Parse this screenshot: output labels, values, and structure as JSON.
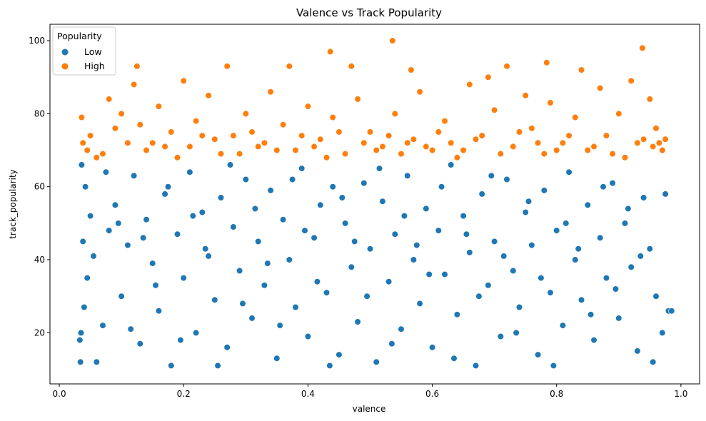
{
  "chart_data": {
    "type": "scatter",
    "title": "Valence vs Track Popularity",
    "xlabel": "valence",
    "ylabel": "track_popularity",
    "xlim": [
      -0.015,
      1.03
    ],
    "ylim": [
      6,
      104.5
    ],
    "xticks": [
      0.0,
      0.2,
      0.4,
      0.6,
      0.8,
      1.0
    ],
    "xtick_labels": [
      "0.0",
      "0.2",
      "0.4",
      "0.6",
      "0.8",
      "1.0"
    ],
    "yticks": [
      20,
      40,
      60,
      80,
      100
    ],
    "ytick_labels": [
      "20",
      "40",
      "60",
      "80",
      "100"
    ],
    "grid": false,
    "legend": {
      "title": "Popularity",
      "placement": "top-left",
      "entries": [
        "Low",
        "High"
      ]
    },
    "colors": {
      "Low": "#1f77b4",
      "High": "#ff7f0e"
    },
    "series": [
      {
        "name": "Low",
        "points": [
          [
            0.033,
            18
          ],
          [
            0.035,
            20
          ],
          [
            0.04,
            27
          ],
          [
            0.045,
            35
          ],
          [
            0.038,
            45
          ],
          [
            0.05,
            52
          ],
          [
            0.042,
            60
          ],
          [
            0.036,
            66
          ],
          [
            0.06,
            12
          ],
          [
            0.07,
            22
          ],
          [
            0.08,
            48
          ],
          [
            0.09,
            55
          ],
          [
            0.1,
            30
          ],
          [
            0.11,
            44
          ],
          [
            0.12,
            63
          ],
          [
            0.13,
            17
          ],
          [
            0.14,
            51
          ],
          [
            0.15,
            39
          ],
          [
            0.16,
            26
          ],
          [
            0.17,
            58
          ],
          [
            0.18,
            11
          ],
          [
            0.19,
            47
          ],
          [
            0.2,
            35
          ],
          [
            0.21,
            64
          ],
          [
            0.22,
            20
          ],
          [
            0.23,
            53
          ],
          [
            0.24,
            41
          ],
          [
            0.25,
            29
          ],
          [
            0.26,
            57
          ],
          [
            0.27,
            16
          ],
          [
            0.28,
            49
          ],
          [
            0.29,
            37
          ],
          [
            0.3,
            62
          ],
          [
            0.31,
            24
          ],
          [
            0.32,
            45
          ],
          [
            0.33,
            33
          ],
          [
            0.34,
            59
          ],
          [
            0.35,
            13
          ],
          [
            0.36,
            51
          ],
          [
            0.37,
            40
          ],
          [
            0.38,
            27
          ],
          [
            0.39,
            65
          ],
          [
            0.4,
            19
          ],
          [
            0.41,
            46
          ],
          [
            0.42,
            55
          ],
          [
            0.43,
            31
          ],
          [
            0.44,
            60
          ],
          [
            0.45,
            14
          ],
          [
            0.46,
            50
          ],
          [
            0.47,
            38
          ],
          [
            0.48,
            23
          ],
          [
            0.49,
            61
          ],
          [
            0.5,
            43
          ],
          [
            0.51,
            12
          ],
          [
            0.52,
            56
          ],
          [
            0.53,
            34
          ],
          [
            0.54,
            47
          ],
          [
            0.55,
            21
          ],
          [
            0.56,
            63
          ],
          [
            0.57,
            40
          ],
          [
            0.58,
            28
          ],
          [
            0.59,
            54
          ],
          [
            0.6,
            16
          ],
          [
            0.61,
            48
          ],
          [
            0.62,
            36
          ],
          [
            0.63,
            66
          ],
          [
            0.64,
            25
          ],
          [
            0.65,
            52
          ],
          [
            0.66,
            42
          ],
          [
            0.67,
            11
          ],
          [
            0.68,
            58
          ],
          [
            0.69,
            33
          ],
          [
            0.7,
            45
          ],
          [
            0.71,
            19
          ],
          [
            0.72,
            62
          ],
          [
            0.73,
            37
          ],
          [
            0.74,
            27
          ],
          [
            0.75,
            53
          ],
          [
            0.76,
            44
          ],
          [
            0.77,
            14
          ],
          [
            0.78,
            59
          ],
          [
            0.79,
            31
          ],
          [
            0.8,
            48
          ],
          [
            0.81,
            22
          ],
          [
            0.82,
            64
          ],
          [
            0.83,
            40
          ],
          [
            0.84,
            29
          ],
          [
            0.85,
            55
          ],
          [
            0.86,
            18
          ],
          [
            0.87,
            46
          ],
          [
            0.88,
            35
          ],
          [
            0.89,
            61
          ],
          [
            0.9,
            24
          ],
          [
            0.91,
            50
          ],
          [
            0.92,
            38
          ],
          [
            0.93,
            15
          ],
          [
            0.94,
            57
          ],
          [
            0.95,
            43
          ],
          [
            0.96,
            30
          ],
          [
            0.97,
            20
          ],
          [
            0.98,
            26
          ],
          [
            0.034,
            12
          ],
          [
            0.055,
            41
          ],
          [
            0.075,
            64
          ],
          [
            0.095,
            50
          ],
          [
            0.115,
            21
          ],
          [
            0.135,
            46
          ],
          [
            0.155,
            33
          ],
          [
            0.175,
            60
          ],
          [
            0.195,
            18
          ],
          [
            0.215,
            52
          ],
          [
            0.235,
            43
          ],
          [
            0.255,
            11
          ],
          [
            0.275,
            66
          ],
          [
            0.295,
            28
          ],
          [
            0.315,
            54
          ],
          [
            0.335,
            39
          ],
          [
            0.355,
            22
          ],
          [
            0.375,
            62
          ],
          [
            0.395,
            48
          ],
          [
            0.415,
            34
          ],
          [
            0.435,
            11
          ],
          [
            0.455,
            57
          ],
          [
            0.475,
            45
          ],
          [
            0.495,
            30
          ],
          [
            0.515,
            65
          ],
          [
            0.535,
            17
          ],
          [
            0.555,
            52
          ],
          [
            0.575,
            44
          ],
          [
            0.595,
            36
          ],
          [
            0.615,
            60
          ],
          [
            0.635,
            13
          ],
          [
            0.655,
            47
          ],
          [
            0.675,
            30
          ],
          [
            0.695,
            63
          ],
          [
            0.715,
            41
          ],
          [
            0.735,
            20
          ],
          [
            0.755,
            56
          ],
          [
            0.775,
            35
          ],
          [
            0.795,
            11
          ],
          [
            0.815,
            50
          ],
          [
            0.835,
            43
          ],
          [
            0.855,
            25
          ],
          [
            0.875,
            60
          ],
          [
            0.895,
            32
          ],
          [
            0.915,
            54
          ],
          [
            0.935,
            41
          ],
          [
            0.955,
            12
          ],
          [
            0.975,
            58
          ],
          [
            0.985,
            26
          ]
        ]
      },
      {
        "name": "High",
        "points": [
          [
            0.036,
            79
          ],
          [
            0.038,
            72
          ],
          [
            0.045,
            70
          ],
          [
            0.06,
            68
          ],
          [
            0.08,
            84
          ],
          [
            0.09,
            76
          ],
          [
            0.1,
            80
          ],
          [
            0.11,
            72
          ],
          [
            0.12,
            88
          ],
          [
            0.125,
            93
          ],
          [
            0.14,
            70
          ],
          [
            0.16,
            82
          ],
          [
            0.18,
            75
          ],
          [
            0.2,
            89
          ],
          [
            0.21,
            71
          ],
          [
            0.22,
            78
          ],
          [
            0.24,
            85
          ],
          [
            0.26,
            69
          ],
          [
            0.27,
            93
          ],
          [
            0.28,
            74
          ],
          [
            0.3,
            80
          ],
          [
            0.32,
            71
          ],
          [
            0.34,
            86
          ],
          [
            0.36,
            77
          ],
          [
            0.37,
            93
          ],
          [
            0.38,
            70
          ],
          [
            0.4,
            82
          ],
          [
            0.42,
            73
          ],
          [
            0.436,
            97
          ],
          [
            0.44,
            79
          ],
          [
            0.46,
            69
          ],
          [
            0.47,
            93
          ],
          [
            0.48,
            84
          ],
          [
            0.5,
            75
          ],
          [
            0.52,
            71
          ],
          [
            0.536,
            100
          ],
          [
            0.54,
            80
          ],
          [
            0.56,
            72
          ],
          [
            0.566,
            92
          ],
          [
            0.58,
            86
          ],
          [
            0.6,
            70
          ],
          [
            0.62,
            78
          ],
          [
            0.64,
            68
          ],
          [
            0.66,
            88
          ],
          [
            0.68,
            74
          ],
          [
            0.69,
            90
          ],
          [
            0.7,
            81
          ],
          [
            0.72,
            93
          ],
          [
            0.73,
            71
          ],
          [
            0.75,
            85
          ],
          [
            0.76,
            76
          ],
          [
            0.78,
            69
          ],
          [
            0.784,
            94
          ],
          [
            0.79,
            83
          ],
          [
            0.81,
            72
          ],
          [
            0.83,
            79
          ],
          [
            0.84,
            92
          ],
          [
            0.85,
            70
          ],
          [
            0.87,
            87
          ],
          [
            0.88,
            74
          ],
          [
            0.9,
            80
          ],
          [
            0.91,
            68
          ],
          [
            0.92,
            89
          ],
          [
            0.93,
            72
          ],
          [
            0.938,
            98
          ],
          [
            0.95,
            84
          ],
          [
            0.96,
            76
          ],
          [
            0.97,
            70
          ],
          [
            0.975,
            73
          ],
          [
            0.05,
            74
          ],
          [
            0.07,
            69
          ],
          [
            0.13,
            77
          ],
          [
            0.15,
            72
          ],
          [
            0.17,
            71
          ],
          [
            0.19,
            68
          ],
          [
            0.23,
            74
          ],
          [
            0.25,
            73
          ],
          [
            0.29,
            69
          ],
          [
            0.31,
            75
          ],
          [
            0.33,
            72
          ],
          [
            0.35,
            70
          ],
          [
            0.39,
            74
          ],
          [
            0.41,
            71
          ],
          [
            0.43,
            68
          ],
          [
            0.45,
            75
          ],
          [
            0.49,
            72
          ],
          [
            0.51,
            70
          ],
          [
            0.53,
            74
          ],
          [
            0.55,
            69
          ],
          [
            0.57,
            73
          ],
          [
            0.59,
            71
          ],
          [
            0.61,
            75
          ],
          [
            0.63,
            72
          ],
          [
            0.65,
            70
          ],
          [
            0.67,
            73
          ],
          [
            0.71,
            69
          ],
          [
            0.74,
            75
          ],
          [
            0.77,
            72
          ],
          [
            0.8,
            70
          ],
          [
            0.82,
            74
          ],
          [
            0.86,
            71
          ],
          [
            0.89,
            69
          ],
          [
            0.94,
            73
          ],
          [
            0.955,
            71
          ],
          [
            0.965,
            72
          ]
        ]
      }
    ]
  }
}
